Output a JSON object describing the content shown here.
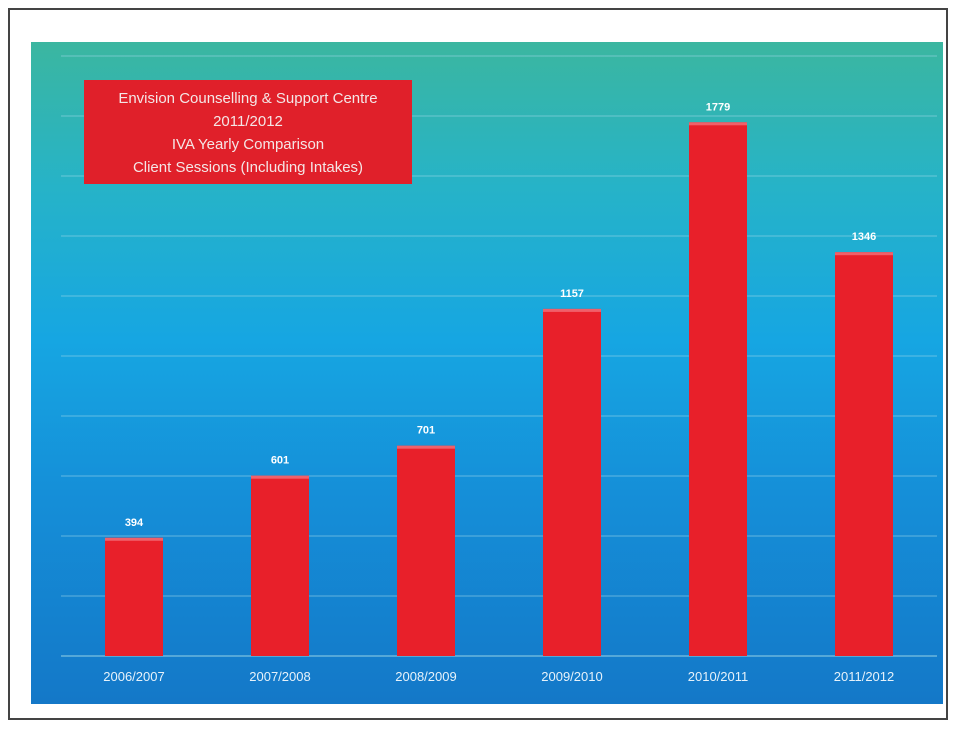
{
  "chart_data": {
    "type": "bar",
    "title_lines": [
      "Envision Counselling & Support Centre",
      "2011/2012",
      "IVA Yearly Comparison",
      "Client Sessions (Including Intakes)"
    ],
    "categories": [
      "2006/2007",
      "2007/2008",
      "2008/2009",
      "2009/2010",
      "2010/2011",
      "2011/2012"
    ],
    "values": [
      394,
      601,
      701,
      1157,
      1779,
      1346
    ],
    "data_labels": [
      "394",
      "601",
      "701",
      "1157",
      "1779",
      "1346"
    ],
    "xlabel": "",
    "ylabel": "",
    "ylim": [
      0,
      2000
    ],
    "grid": true,
    "legend": "none",
    "colors": {
      "bar": "#e8202a",
      "bar_top": "#f0606a",
      "title_box": "#e0202a",
      "gridline": "#9fd8e8",
      "label_text": "#ffffff",
      "tick_text": "#e6f2fa"
    }
  }
}
